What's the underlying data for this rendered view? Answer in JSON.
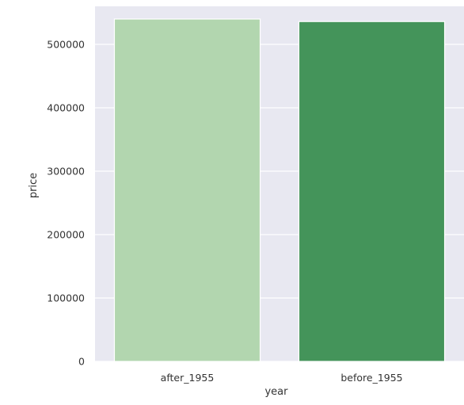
{
  "chart_data": {
    "type": "bar",
    "categories": [
      "after_1955",
      "before_1955"
    ],
    "values": [
      540000,
      536000
    ],
    "xlabel": "year",
    "ylabel": "price",
    "ylim": [
      0,
      560000
    ],
    "yticks": [
      0,
      100000,
      200000,
      300000,
      400000,
      500000
    ],
    "ytick_labels": [
      "0",
      "100000",
      "200000",
      "300000",
      "400000",
      "500000"
    ],
    "grid": true,
    "colors": {
      "plot_background": "#e8e8f1",
      "grid": "#ffffff",
      "bars": [
        "#b2d6af",
        "#44945a"
      ]
    }
  }
}
